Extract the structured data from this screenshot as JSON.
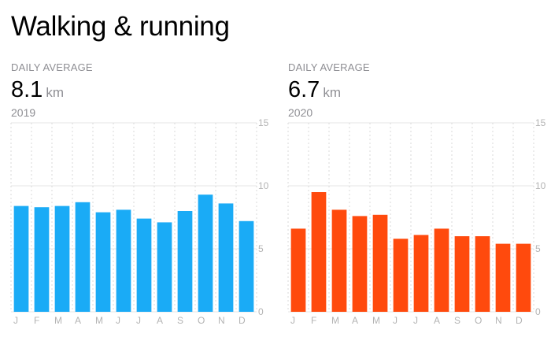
{
  "title": "Walking & running",
  "chart_data": [
    {
      "type": "bar",
      "label": "DAILY AVERAGE",
      "average": "8.1",
      "unit": "km",
      "year": "2019",
      "color": "#1aabf6",
      "categories": [
        "J",
        "F",
        "M",
        "A",
        "M",
        "J",
        "J",
        "A",
        "S",
        "O",
        "N",
        "D"
      ],
      "values": [
        8.4,
        8.3,
        8.4,
        8.7,
        7.9,
        8.1,
        7.4,
        7.1,
        8.0,
        9.3,
        8.6,
        7.2
      ],
      "ylim": [
        0,
        15
      ],
      "yticks": [
        0,
        5,
        10,
        15
      ],
      "grid": true
    },
    {
      "type": "bar",
      "label": "DAILY AVERAGE",
      "average": "6.7",
      "unit": "km",
      "year": "2020",
      "color": "#ff4a0d",
      "categories": [
        "J",
        "F",
        "M",
        "A",
        "M",
        "J",
        "J",
        "A",
        "S",
        "O",
        "N",
        "D"
      ],
      "values": [
        6.6,
        9.5,
        8.1,
        7.6,
        7.7,
        5.8,
        6.1,
        6.6,
        6.0,
        6.0,
        5.4,
        5.4
      ],
      "ylim": [
        0,
        15
      ],
      "yticks": [
        0,
        5,
        10,
        15
      ],
      "grid": true
    }
  ]
}
